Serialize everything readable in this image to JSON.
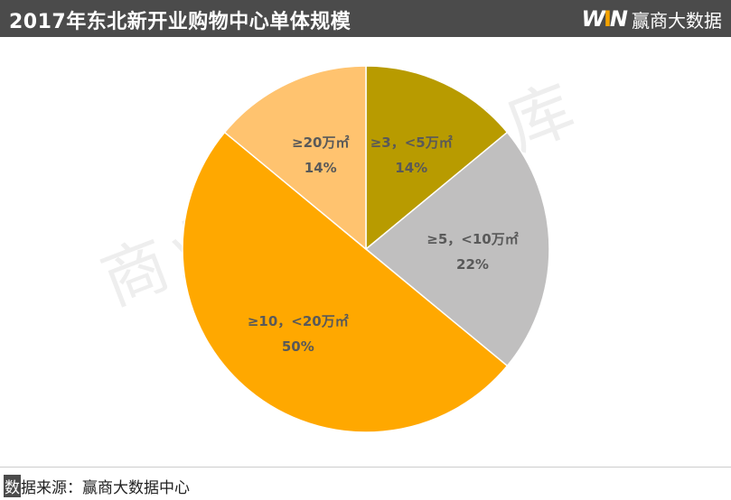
{
  "header": {
    "title": "2017年东北新开业购物中心单体规模",
    "brand_logo_text": "WIN",
    "brand_name": "赢商大数据"
  },
  "watermark": {
    "text": "商业地产云智库"
  },
  "footer": {
    "mark_char": "数",
    "rest_text": "据来源：赢商大数据中心"
  },
  "colors": {
    "header_bg": "#4b4b4b",
    "slice_3_5": "#b89b00",
    "slice_5_10": "#c0bfbf",
    "slice_10_20": "#ffa800",
    "slice_20": "#ffc36f"
  },
  "chart_data": {
    "type": "pie",
    "title": "2017年东北新开业购物中心单体规模",
    "start_angle_deg": 0,
    "direction": "clockwise",
    "slices": [
      {
        "label": "≥3，<5万㎡",
        "value": 14,
        "value_label": "14%",
        "color": "#b89b00"
      },
      {
        "label": "≥5，<10万㎡",
        "value": 22,
        "value_label": "22%",
        "color": "#c0bfbf"
      },
      {
        "label": "≥10，<20万㎡",
        "value": 50,
        "value_label": "50%",
        "color": "#ffa800"
      },
      {
        "label": "≥20万㎡",
        "value": 14,
        "value_label": "14%",
        "color": "#ffc36f"
      }
    ]
  }
}
